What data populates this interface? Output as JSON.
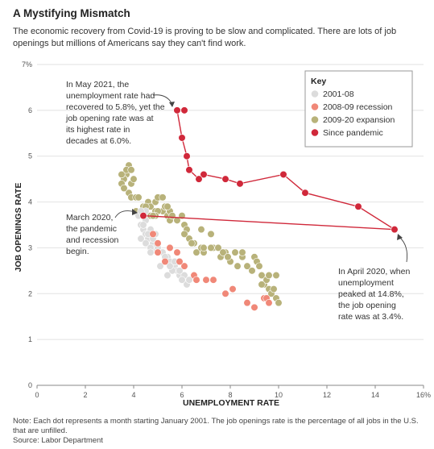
{
  "header": {
    "title": "A Mystifying Mismatch",
    "subtitle": "The economic recovery from Covid-19 is proving to be slow and complicated. There are lots of job openings but millions of Americans say they can't find work."
  },
  "footer": {
    "note": "Note: Each dot represents a month starting January 2001. The job openings rate is the percentage of all jobs in the U.S. that are unfilled.",
    "source": "Source: Labor Department"
  },
  "annotations": {
    "may2021": [
      "In May 2021, the",
      "unemployment rate had",
      "recovered to 5.8%, yet the",
      "job opening rate was at",
      "its highest rate in",
      "decades at 6.0%."
    ],
    "march2020": [
      "March 2020,",
      "the pandemic",
      "and recession",
      "begin."
    ],
    "april2020": [
      "In April 2020, when",
      "unemployment",
      "peaked at 14.8%,",
      "the job opening",
      "rate was at 3.4%."
    ]
  },
  "colors": {
    "s2001": "#dcdcdc",
    "s2008": "#f08878",
    "s2009": "#b8b27a",
    "pandemic": "#d0283a",
    "gridline": "#e2e2e2"
  },
  "chart_data": {
    "type": "scatter",
    "xlabel": "UNEMPLOYMENT RATE",
    "ylabel": "JOB OPENINGS RATE",
    "xlim": [
      0,
      16
    ],
    "ylim": [
      0,
      7
    ],
    "x_ticks": [
      "0",
      "2",
      "4",
      "6",
      "8",
      "10",
      "12",
      "14",
      "16%"
    ],
    "y_ticks": [
      "0",
      "1",
      "2",
      "3",
      "4",
      "5",
      "6",
      "7%"
    ],
    "grid": true,
    "legend": {
      "title": "Key",
      "placement": "top-right",
      "entries": [
        "2001-08",
        "2008-09 recession",
        "2009-20 expansion",
        "Since pandemic"
      ]
    },
    "series": [
      {
        "name": "2001-08",
        "points": [
          [
            4.2,
            3.7
          ],
          [
            4.3,
            3.5
          ],
          [
            4.4,
            3.4
          ],
          [
            4.5,
            3.3
          ],
          [
            4.3,
            3.2
          ],
          [
            4.6,
            3.2
          ],
          [
            4.5,
            3.1
          ],
          [
            4.8,
            3.1
          ],
          [
            4.7,
            3.4
          ],
          [
            4.9,
            3.0
          ],
          [
            5.0,
            3.0
          ],
          [
            5.2,
            2.9
          ],
          [
            5.4,
            2.8
          ],
          [
            5.5,
            2.7
          ],
          [
            5.7,
            2.6
          ],
          [
            5.8,
            2.5
          ],
          [
            5.9,
            2.4
          ],
          [
            6.0,
            2.3
          ],
          [
            6.2,
            2.2
          ],
          [
            5.6,
            2.5
          ],
          [
            5.3,
            2.7
          ],
          [
            5.0,
            2.9
          ],
          [
            4.7,
            3.0
          ],
          [
            4.5,
            3.6
          ],
          [
            4.8,
            3.2
          ],
          [
            5.5,
            2.6
          ],
          [
            5.9,
            2.5
          ],
          [
            6.1,
            2.4
          ],
          [
            4.6,
            3.3
          ],
          [
            4.4,
            3.5
          ],
          [
            4.7,
            2.9
          ],
          [
            5.3,
            2.8
          ],
          [
            6.0,
            2.3
          ],
          [
            5.1,
            2.6
          ],
          [
            5.4,
            2.4
          ],
          [
            6.3,
            2.3
          ],
          [
            4.9,
            3.3
          ],
          [
            5.7,
            2.7
          ],
          [
            4.5,
            3.8
          ],
          [
            4.3,
            3.8
          ]
        ]
      },
      {
        "name": "2008-09 recession",
        "points": [
          [
            4.8,
            3.3
          ],
          [
            5.0,
            3.1
          ],
          [
            5.0,
            2.9
          ],
          [
            5.5,
            3.0
          ],
          [
            5.3,
            2.7
          ],
          [
            5.8,
            2.9
          ],
          [
            6.1,
            2.6
          ],
          [
            5.9,
            2.7
          ],
          [
            6.5,
            2.4
          ],
          [
            6.6,
            2.3
          ],
          [
            7.0,
            2.3
          ],
          [
            7.3,
            2.3
          ],
          [
            7.8,
            2.0
          ],
          [
            8.1,
            2.1
          ],
          [
            8.7,
            1.8
          ],
          [
            9.0,
            1.7
          ],
          [
            9.4,
            1.9
          ],
          [
            9.5,
            1.9
          ],
          [
            9.6,
            1.8
          ]
        ]
      },
      {
        "name": "2009-20 expansion",
        "points": [
          [
            3.8,
            4.8
          ],
          [
            3.7,
            4.6
          ],
          [
            3.9,
            4.4
          ],
          [
            3.6,
            4.5
          ],
          [
            3.8,
            4.2
          ],
          [
            3.7,
            4.7
          ],
          [
            3.9,
            4.7
          ],
          [
            3.5,
            4.4
          ],
          [
            3.6,
            4.3
          ],
          [
            4.0,
            4.5
          ],
          [
            3.6,
            4.5
          ],
          [
            3.5,
            4.6
          ],
          [
            3.9,
            4.1
          ],
          [
            4.1,
            4.1
          ],
          [
            4.2,
            4.1
          ],
          [
            4.4,
            3.9
          ],
          [
            4.6,
            4.0
          ],
          [
            4.7,
            3.9
          ],
          [
            4.9,
            4.0
          ],
          [
            5.1,
            4.1
          ],
          [
            4.9,
            3.8
          ],
          [
            5.2,
            3.8
          ],
          [
            5.0,
            4.1
          ],
          [
            5.3,
            3.9
          ],
          [
            5.4,
            3.7
          ],
          [
            5.5,
            3.6
          ],
          [
            5.3,
            3.9
          ],
          [
            5.0,
            3.8
          ],
          [
            4.7,
            3.7
          ],
          [
            4.9,
            3.7
          ],
          [
            5.2,
            4.1
          ],
          [
            5.5,
            3.8
          ],
          [
            5.6,
            3.7
          ],
          [
            5.8,
            3.6
          ],
          [
            6.1,
            3.5
          ],
          [
            6.2,
            3.4
          ],
          [
            6.0,
            3.7
          ],
          [
            6.1,
            3.3
          ],
          [
            6.3,
            3.2
          ],
          [
            6.5,
            3.1
          ],
          [
            6.6,
            2.9
          ],
          [
            6.8,
            3.0
          ],
          [
            6.9,
            2.9
          ],
          [
            7.3,
            3.0
          ],
          [
            7.5,
            3.0
          ],
          [
            7.6,
            2.8
          ],
          [
            7.8,
            2.9
          ],
          [
            7.9,
            2.8
          ],
          [
            8.0,
            2.7
          ],
          [
            8.2,
            2.9
          ],
          [
            8.3,
            2.6
          ],
          [
            8.5,
            2.8
          ],
          [
            8.7,
            2.6
          ],
          [
            8.9,
            2.5
          ],
          [
            9.0,
            2.8
          ],
          [
            9.1,
            2.7
          ],
          [
            9.2,
            2.6
          ],
          [
            9.3,
            2.4
          ],
          [
            9.4,
            2.2
          ],
          [
            9.5,
            2.3
          ],
          [
            9.6,
            2.1
          ],
          [
            9.7,
            2.0
          ],
          [
            9.9,
            1.9
          ],
          [
            9.8,
            2.1
          ],
          [
            10.0,
            1.8
          ],
          [
            9.6,
            2.4
          ],
          [
            9.9,
            2.4
          ],
          [
            9.3,
            2.2
          ],
          [
            8.5,
            2.9
          ],
          [
            7.7,
            2.9
          ],
          [
            7.2,
            3.0
          ],
          [
            6.9,
            3.0
          ],
          [
            6.4,
            3.1
          ],
          [
            6.8,
            3.4
          ],
          [
            7.2,
            3.3
          ],
          [
            7.9,
            2.8
          ],
          [
            4.8,
            3.7
          ],
          [
            5.4,
            3.9
          ],
          [
            4.5,
            3.9
          ],
          [
            4.1,
            3.8
          ],
          [
            3.5,
            4.4
          ],
          [
            3.6,
            4.3
          ]
        ]
      },
      {
        "name": "Since pandemic",
        "points": [
          [
            4.4,
            3.7
          ],
          [
            14.8,
            3.4
          ],
          [
            13.3,
            3.9
          ],
          [
            11.1,
            4.2
          ],
          [
            10.2,
            4.6
          ],
          [
            8.4,
            4.4
          ],
          [
            7.8,
            4.5
          ],
          [
            6.9,
            4.6
          ],
          [
            6.7,
            4.5
          ],
          [
            6.3,
            4.7
          ],
          [
            6.2,
            5.0
          ],
          [
            6.0,
            5.4
          ],
          [
            5.8,
            6.0
          ],
          [
            6.1,
            6.0
          ]
        ]
      }
    ]
  }
}
